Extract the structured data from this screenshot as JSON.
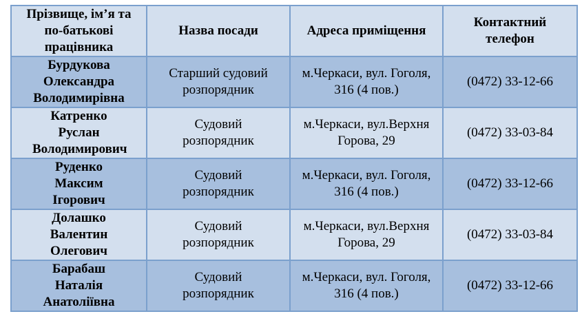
{
  "headers": [
    "Прізвище, ім’я та по-батькові працівника",
    "Назва посади",
    "Адреса приміщення",
    "Контактний телефон"
  ],
  "rows": [
    {
      "name": "Бурдукова Олександра Володимирівна",
      "position": "Старший судовий розпорядник",
      "address": "м.Черкаси, вул. Гоголя, 316 (4 пов.)",
      "phone": "(0472) 33-12-66"
    },
    {
      "name": "Катренко Руслан Володимирович",
      "position": "Судовий розпорядник",
      "address": "м.Черкаси, вул.Верхня Горова, 29",
      "phone": "(0472) 33-03-84"
    },
    {
      "name": "Руденко Максим Ігорович",
      "position": "Судовий розпорядник",
      "address": "м.Черкаси, вул. Гоголя, 316 (4 пов.)",
      "phone": "(0472) 33-12-66"
    },
    {
      "name": "Долашко Валентин Олегович",
      "position": "Судовий розпорядник",
      "address": "м.Черкаси, вул.Верхня Горова, 29",
      "phone": "(0472) 33-03-84"
    },
    {
      "name": "Барабаш Наталія Анатоліївна",
      "position": "Судовий розпорядник",
      "address": "м.Черкаси, вул. Гоголя, 316 (4 пов.)",
      "phone": "(0472) 33-12-66"
    }
  ],
  "colors": {
    "header_bg": "#d3dfee",
    "row_dark": "#a7bfde",
    "row_light": "#d3dfee",
    "border": "#7ba0cd"
  }
}
